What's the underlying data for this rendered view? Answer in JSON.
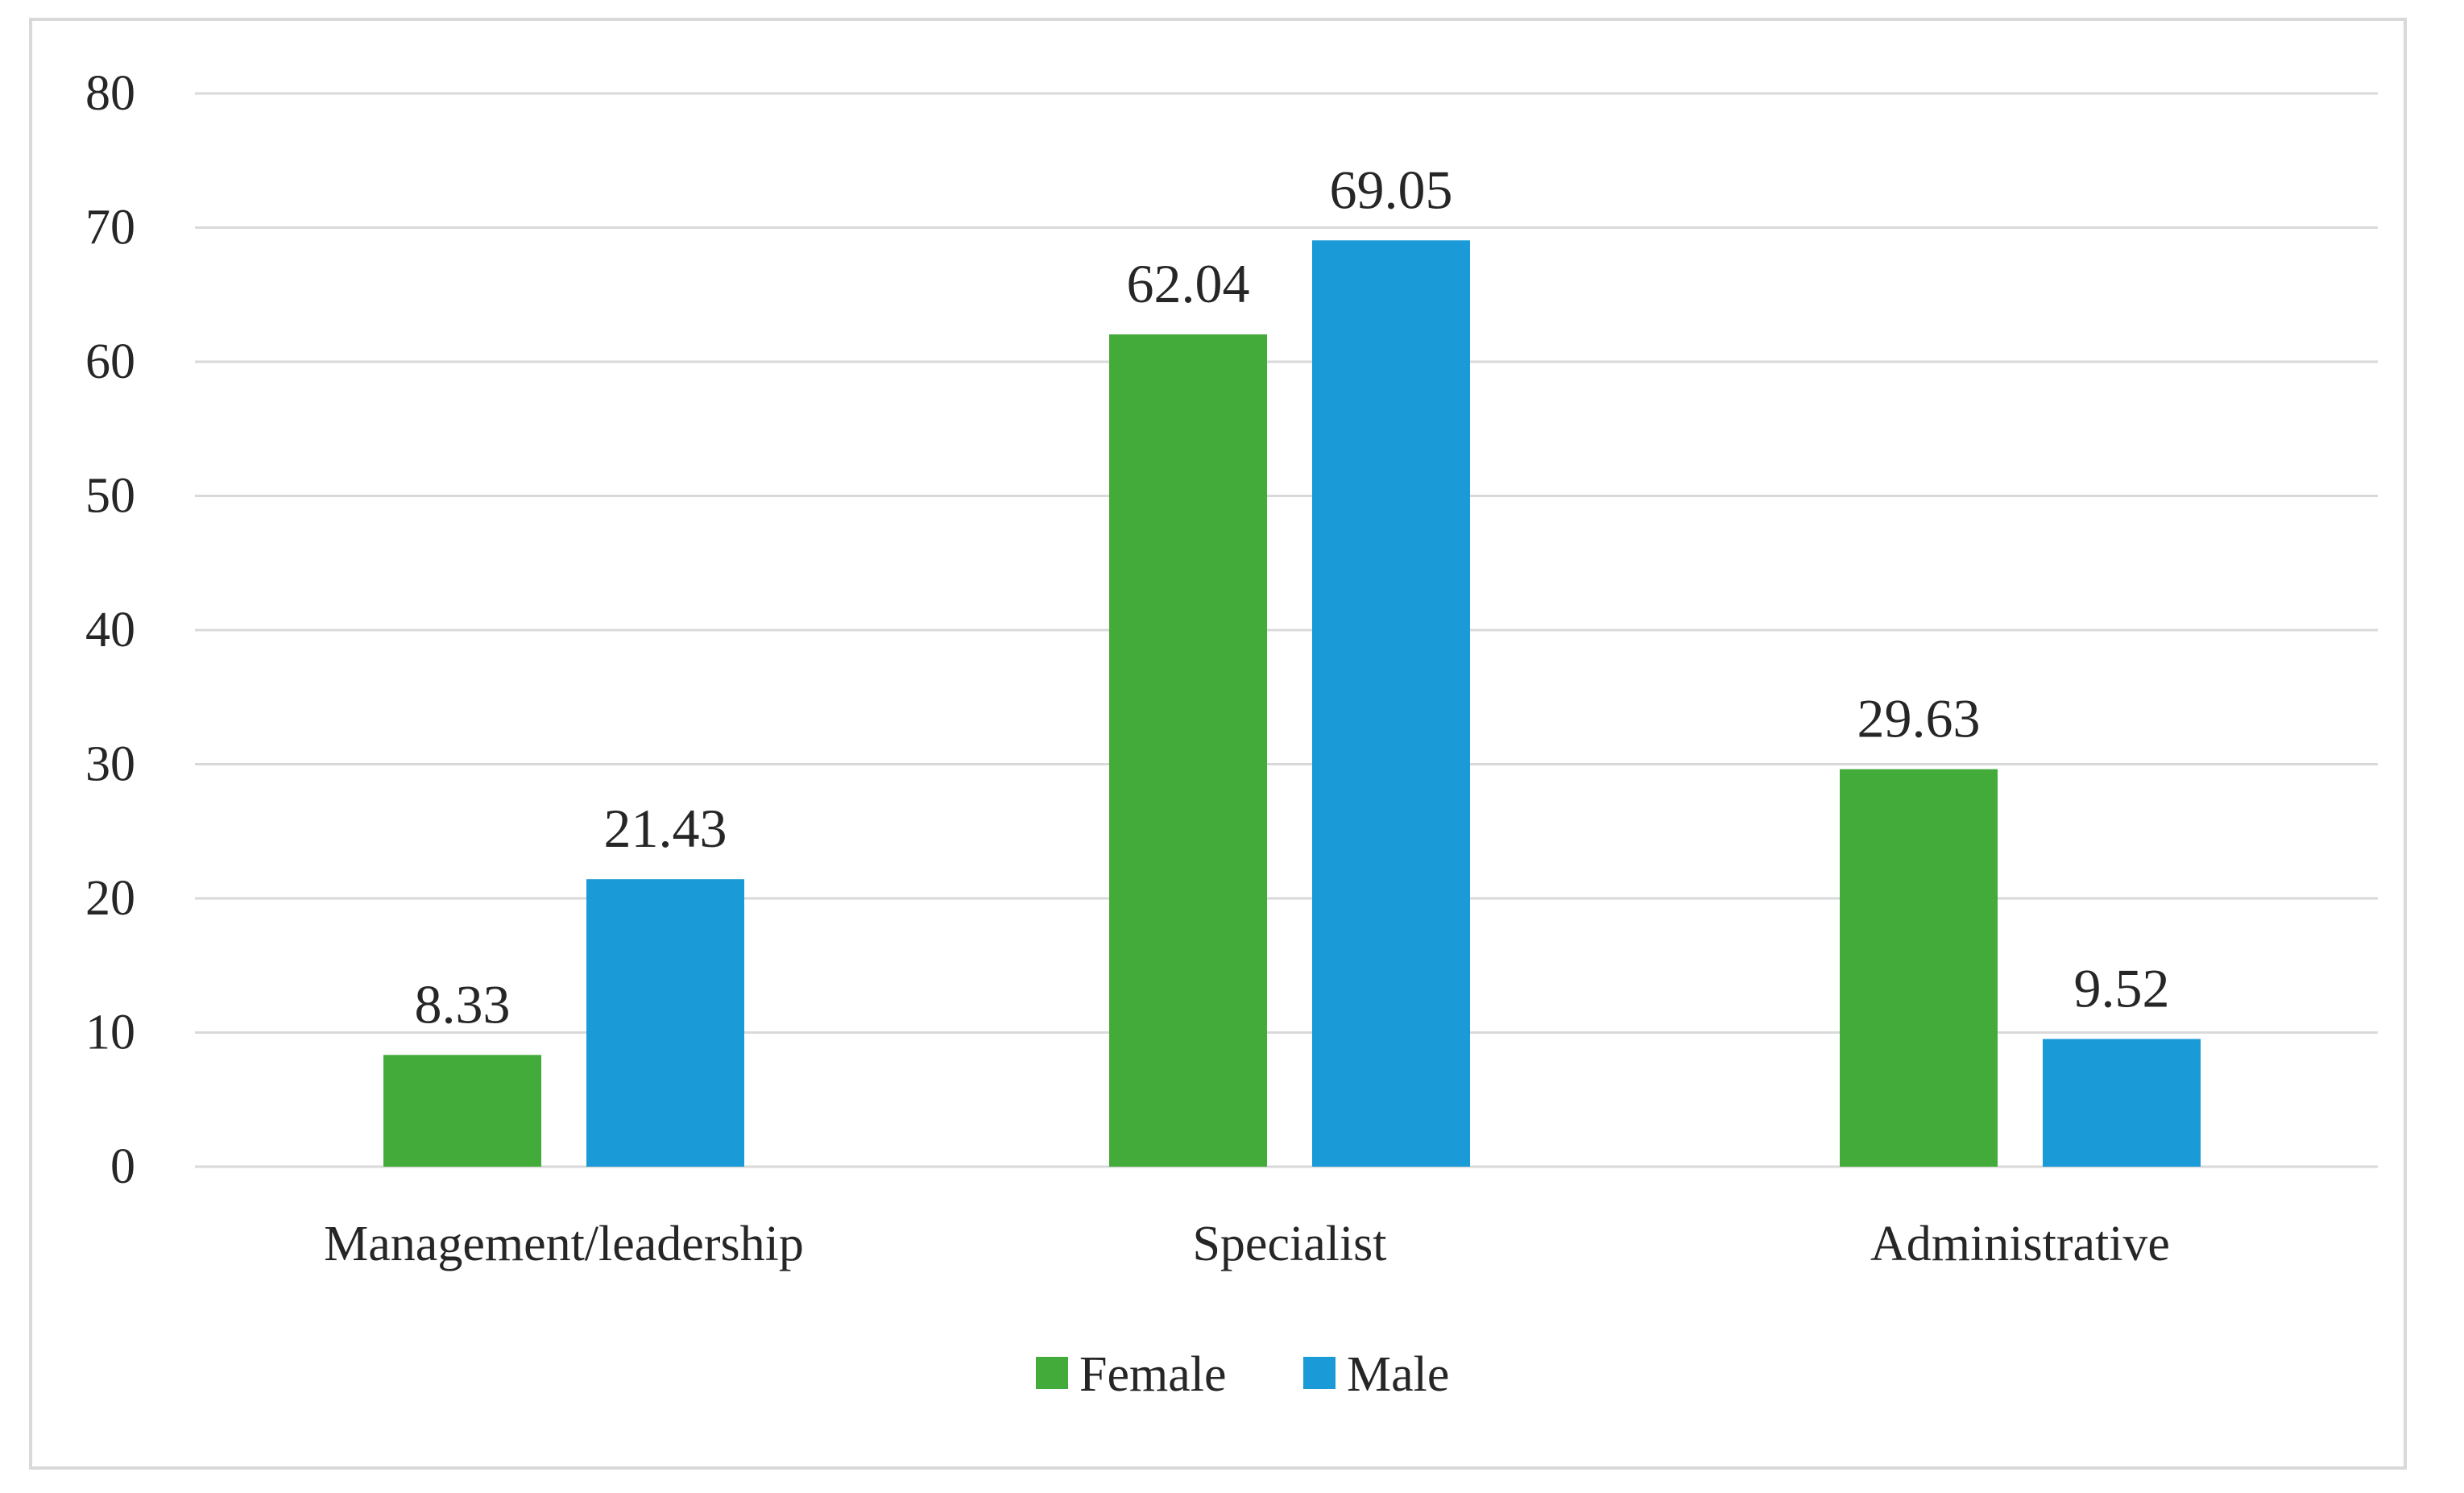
{
  "chart_data": {
    "type": "bar",
    "title": "",
    "xlabel": "",
    "ylabel": "",
    "categories": [
      "Management/leadership",
      "Specialist",
      "Administrative"
    ],
    "series": [
      {
        "name": "Female",
        "values": [
          8.33,
          62.04,
          29.63
        ],
        "labels": [
          "8.33",
          "62.04",
          "29.63"
        ],
        "color": "#43ab3a"
      },
      {
        "name": "Male",
        "values": [
          21.43,
          69.05,
          9.52
        ],
        "labels": [
          "21.43",
          "69.05",
          "9.52"
        ],
        "color": "#1a9ad6"
      }
    ],
    "ylim": [
      0,
      80
    ],
    "yticks": [
      0,
      10,
      20,
      30,
      40,
      50,
      60,
      70,
      80
    ],
    "ytick_labels": [
      "0",
      "10",
      "20",
      "30",
      "40",
      "50",
      "60",
      "70",
      "80"
    ],
    "grid": true,
    "legend_position": "bottom-center",
    "gridline_color": "#d9d9d9",
    "text_color": "#262626"
  }
}
